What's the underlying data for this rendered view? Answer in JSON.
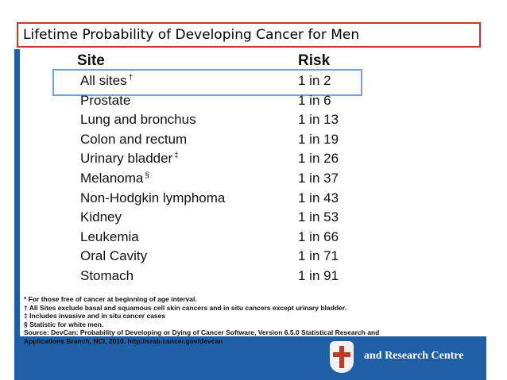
{
  "slide": {
    "title": "Lifetime Probability of Developing Cancer for Men"
  },
  "table": {
    "headers": {
      "site": "Site",
      "risk": "Risk"
    },
    "rows": [
      {
        "site": "All sites",
        "mark": "†",
        "risk": "1 in 2"
      },
      {
        "site": "Prostate",
        "mark": "",
        "risk": "1 in 6"
      },
      {
        "site": "Lung and bronchus",
        "mark": "",
        "risk": "1 in 13"
      },
      {
        "site": "Colon and rectum",
        "mark": "",
        "risk": "1 in 19"
      },
      {
        "site": "Urinary bladder",
        "mark": "‡",
        "risk": "1 in 26"
      },
      {
        "site": "Melanoma",
        "mark": "§",
        "risk": "1 in 37"
      },
      {
        "site": "Non-Hodgkin lymphoma",
        "mark": "",
        "risk": "1 in 43"
      },
      {
        "site": "Kidney",
        "mark": "",
        "risk": "1 in 53"
      },
      {
        "site": "Leukemia",
        "mark": "",
        "risk": "1 in 66"
      },
      {
        "site": "Oral Cavity",
        "mark": "",
        "risk": "1 in 71"
      },
      {
        "site": "Stomach",
        "mark": "",
        "risk": "1 in 91"
      }
    ]
  },
  "footnotes": [
    "* For those free of cancer at beginning of age interval.",
    "† All Sites exclude basal and squamous cell skin cancers and in situ cancers except urinary bladder.",
    "‡ Includes invasive and in situ cancer cases",
    "§ Statistic for white men.",
    "Source: DevCan: Probability of Developing or Dying of Cancer Software, Version 6.5.0 Statistical Research and",
    "Applications Branch, NCI, 2010. http://srab.cancer.gov/devcan"
  ],
  "branding": {
    "logo_text": "and Research Centre",
    "panel_color": "#1f5fa8",
    "title_border_color": "#c0392b",
    "highlight_color": "#7aa0d8"
  }
}
